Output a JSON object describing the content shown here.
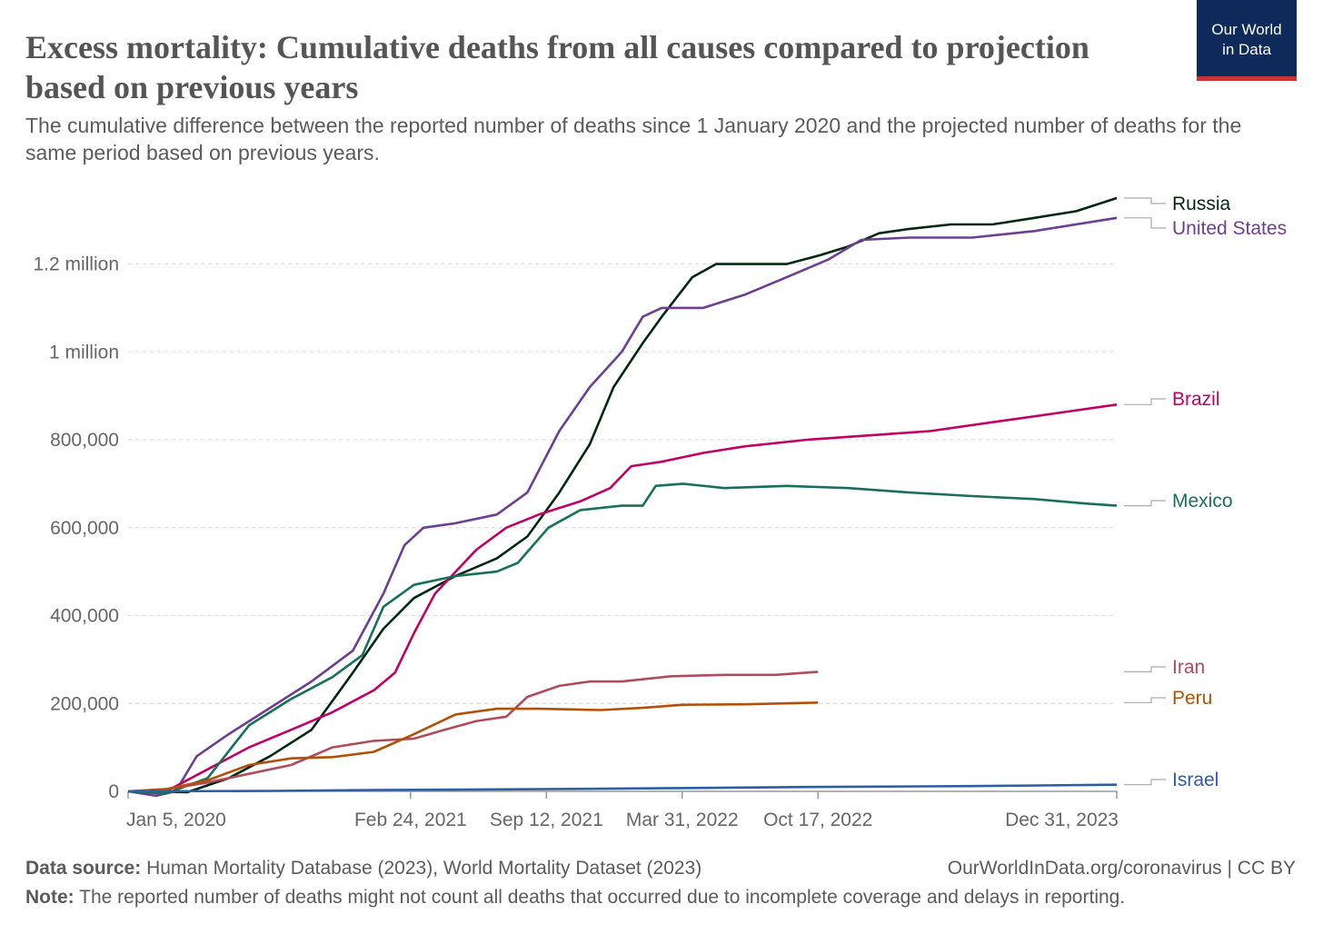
{
  "header": {
    "title": "Excess mortality: Cumulative deaths from all causes compared to projection based on previous years",
    "subtitle": "The cumulative difference between the reported number of deaths since 1 January 2020 and the projected number of deaths for the same period based on previous years.",
    "logo_line1": "Our World",
    "logo_line2": "in Data"
  },
  "footer": {
    "source_label": "Data source:",
    "source_text": "Human Mortality Database (2023), World Mortality Dataset (2023)",
    "credit": "OurWorldInData.org/coronavirus | CC BY",
    "note_label": "Note:",
    "note_text": "The reported number of deaths might not count all deaths that occurred due to incomplete coverage and delays in reporting."
  },
  "chart_data": {
    "type": "line",
    "title": "Excess mortality: Cumulative deaths from all causes compared to projection based on previous years",
    "xlabel": "",
    "ylabel": "",
    "x_type": "date",
    "xlim": [
      "2020-01-05",
      "2023-12-31"
    ],
    "ylim": [
      0,
      1350000
    ],
    "grid": "horizontal-dashed",
    "legend": "right-end-labels",
    "y_ticks": [
      {
        "value": 0,
        "label": "0"
      },
      {
        "value": 200000,
        "label": "200,000"
      },
      {
        "value": 400000,
        "label": "400,000"
      },
      {
        "value": 600000,
        "label": "600,000"
      },
      {
        "value": 800000,
        "label": "800,000"
      },
      {
        "value": 1000000,
        "label": "1 million"
      },
      {
        "value": 1200000,
        "label": "1.2 million"
      }
    ],
    "x_ticks": [
      {
        "value": "2020-01-05",
        "label": "Jan 5, 2020"
      },
      {
        "value": "2021-02-24",
        "label": "Feb 24, 2021"
      },
      {
        "value": "2021-09-12",
        "label": "Sep 12, 2021"
      },
      {
        "value": "2022-03-31",
        "label": "Mar 31, 2022"
      },
      {
        "value": "2022-10-17",
        "label": "Oct 17, 2022"
      },
      {
        "value": "2023-12-31",
        "label": "Dec 31, 2023"
      }
    ],
    "series": [
      {
        "name": "Russia",
        "color": "#00290f",
        "points": [
          [
            "2020-01-05",
            0
          ],
          [
            "2020-04-01",
            -2000
          ],
          [
            "2020-06-01",
            30000
          ],
          [
            "2020-08-01",
            80000
          ],
          [
            "2020-10-01",
            140000
          ],
          [
            "2020-12-01",
            270000
          ],
          [
            "2021-01-15",
            370000
          ],
          [
            "2021-03-01",
            440000
          ],
          [
            "2021-05-01",
            490000
          ],
          [
            "2021-07-01",
            530000
          ],
          [
            "2021-08-15",
            580000
          ],
          [
            "2021-10-01",
            680000
          ],
          [
            "2021-11-15",
            790000
          ],
          [
            "2021-12-20",
            920000
          ],
          [
            "2022-02-01",
            1020000
          ],
          [
            "2022-03-01",
            1080000
          ],
          [
            "2022-04-15",
            1170000
          ],
          [
            "2022-05-20",
            1200000
          ],
          [
            "2022-07-01",
            1200000
          ],
          [
            "2022-09-01",
            1200000
          ],
          [
            "2022-10-20",
            1220000
          ],
          [
            "2022-12-01",
            1240000
          ],
          [
            "2023-01-15",
            1270000
          ],
          [
            "2023-03-01",
            1280000
          ],
          [
            "2023-05-01",
            1290000
          ],
          [
            "2023-07-01",
            1290000
          ],
          [
            "2023-09-01",
            1305000
          ],
          [
            "2023-11-01",
            1320000
          ],
          [
            "2023-12-31",
            1350000
          ]
        ]
      },
      {
        "name": "United States",
        "color": "#6d3e91",
        "points": [
          [
            "2020-01-05",
            0
          ],
          [
            "2020-02-15",
            -10000
          ],
          [
            "2020-03-15",
            0
          ],
          [
            "2020-04-15",
            80000
          ],
          [
            "2020-06-01",
            130000
          ],
          [
            "2020-08-01",
            190000
          ],
          [
            "2020-10-01",
            250000
          ],
          [
            "2020-12-01",
            320000
          ],
          [
            "2021-01-15",
            450000
          ],
          [
            "2021-02-15",
            560000
          ],
          [
            "2021-03-15",
            600000
          ],
          [
            "2021-05-01",
            610000
          ],
          [
            "2021-07-01",
            630000
          ],
          [
            "2021-08-15",
            680000
          ],
          [
            "2021-10-01",
            820000
          ],
          [
            "2021-11-15",
            920000
          ],
          [
            "2022-01-01",
            1000000
          ],
          [
            "2022-02-01",
            1080000
          ],
          [
            "2022-03-01",
            1100000
          ],
          [
            "2022-05-01",
            1100000
          ],
          [
            "2022-07-01",
            1130000
          ],
          [
            "2022-09-01",
            1170000
          ],
          [
            "2022-11-01",
            1210000
          ],
          [
            "2022-12-20",
            1255000
          ],
          [
            "2023-03-01",
            1260000
          ],
          [
            "2023-06-01",
            1260000
          ],
          [
            "2023-09-01",
            1275000
          ],
          [
            "2023-12-31",
            1305000
          ]
        ]
      },
      {
        "name": "Brazil",
        "color": "#c10065",
        "points": [
          [
            "2020-01-05",
            0
          ],
          [
            "2020-03-01",
            0
          ],
          [
            "2020-05-01",
            50000
          ],
          [
            "2020-07-01",
            100000
          ],
          [
            "2020-09-01",
            140000
          ],
          [
            "2020-11-01",
            180000
          ],
          [
            "2021-01-01",
            230000
          ],
          [
            "2021-02-01",
            270000
          ],
          [
            "2021-03-01",
            360000
          ],
          [
            "2021-04-01",
            450000
          ],
          [
            "2021-06-01",
            550000
          ],
          [
            "2021-07-15",
            600000
          ],
          [
            "2021-09-01",
            630000
          ],
          [
            "2021-11-01",
            660000
          ],
          [
            "2021-12-15",
            690000
          ],
          [
            "2022-01-15",
            740000
          ],
          [
            "2022-03-01",
            750000
          ],
          [
            "2022-05-01",
            770000
          ],
          [
            "2022-07-01",
            785000
          ],
          [
            "2022-10-01",
            800000
          ],
          [
            "2023-01-01",
            810000
          ],
          [
            "2023-04-01",
            820000
          ],
          [
            "2023-07-01",
            840000
          ],
          [
            "2023-10-01",
            860000
          ],
          [
            "2023-12-31",
            880000
          ]
        ]
      },
      {
        "name": "Mexico",
        "color": "#18705a",
        "points": [
          [
            "2020-01-05",
            0
          ],
          [
            "2020-03-01",
            -5000
          ],
          [
            "2020-05-01",
            30000
          ],
          [
            "2020-07-01",
            150000
          ],
          [
            "2020-09-01",
            210000
          ],
          [
            "2020-11-01",
            260000
          ],
          [
            "2020-12-15",
            310000
          ],
          [
            "2021-01-15",
            420000
          ],
          [
            "2021-03-01",
            470000
          ],
          [
            "2021-05-01",
            490000
          ],
          [
            "2021-07-01",
            500000
          ],
          [
            "2021-08-01",
            520000
          ],
          [
            "2021-09-15",
            600000
          ],
          [
            "2021-11-01",
            640000
          ],
          [
            "2022-01-01",
            650000
          ],
          [
            "2022-02-01",
            650000
          ],
          [
            "2022-02-20",
            695000
          ],
          [
            "2022-04-01",
            700000
          ],
          [
            "2022-06-01",
            690000
          ],
          [
            "2022-09-01",
            695000
          ],
          [
            "2022-12-01",
            690000
          ],
          [
            "2023-03-01",
            680000
          ],
          [
            "2023-06-01",
            672000
          ],
          [
            "2023-09-01",
            665000
          ],
          [
            "2023-11-15",
            655000
          ],
          [
            "2023-12-31",
            650000
          ]
        ]
      },
      {
        "name": "Iran",
        "color": "#b04b5b",
        "points": [
          [
            "2020-01-05",
            0
          ],
          [
            "2020-03-01",
            5000
          ],
          [
            "2020-05-01",
            20000
          ],
          [
            "2020-07-01",
            40000
          ],
          [
            "2020-09-01",
            60000
          ],
          [
            "2020-11-01",
            100000
          ],
          [
            "2021-01-01",
            115000
          ],
          [
            "2021-03-01",
            120000
          ],
          [
            "2021-04-15",
            140000
          ],
          [
            "2021-06-01",
            160000
          ],
          [
            "2021-07-15",
            170000
          ],
          [
            "2021-08-15",
            215000
          ],
          [
            "2021-10-01",
            240000
          ],
          [
            "2021-11-15",
            250000
          ],
          [
            "2022-01-01",
            250000
          ],
          [
            "2022-03-15",
            262000
          ],
          [
            "2022-06-01",
            265000
          ],
          [
            "2022-08-15",
            265000
          ],
          [
            "2022-10-17",
            272000
          ]
        ]
      },
      {
        "name": "Peru",
        "color": "#b35008",
        "points": [
          [
            "2020-01-05",
            0
          ],
          [
            "2020-03-01",
            5000
          ],
          [
            "2020-05-01",
            25000
          ],
          [
            "2020-07-01",
            60000
          ],
          [
            "2020-09-01",
            75000
          ],
          [
            "2020-11-01",
            78000
          ],
          [
            "2021-01-01",
            90000
          ],
          [
            "2021-03-01",
            130000
          ],
          [
            "2021-05-01",
            175000
          ],
          [
            "2021-07-01",
            188000
          ],
          [
            "2021-09-01",
            188000
          ],
          [
            "2021-12-01",
            185000
          ],
          [
            "2022-02-01",
            190000
          ],
          [
            "2022-04-01",
            197000
          ],
          [
            "2022-07-01",
            198000
          ],
          [
            "2022-10-17",
            202000
          ]
        ]
      },
      {
        "name": "Israel",
        "color": "#2c5ea3",
        "points": [
          [
            "2020-01-05",
            0
          ],
          [
            "2020-08-01",
            1000
          ],
          [
            "2021-01-01",
            3000
          ],
          [
            "2021-09-01",
            5000
          ],
          [
            "2022-03-01",
            7000
          ],
          [
            "2022-10-01",
            10000
          ],
          [
            "2023-06-01",
            12000
          ],
          [
            "2023-12-31",
            15000
          ]
        ]
      }
    ]
  }
}
